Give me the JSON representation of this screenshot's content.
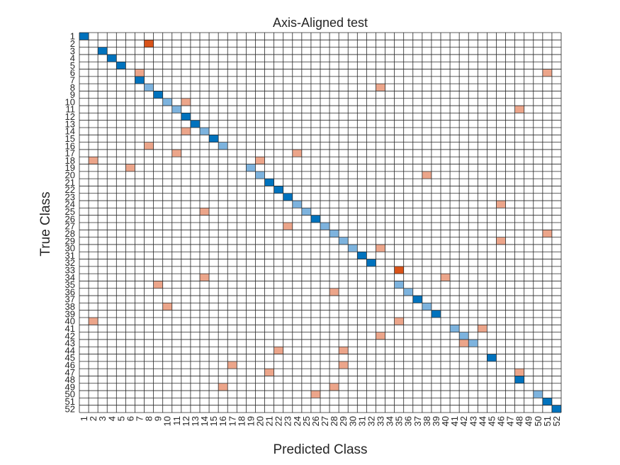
{
  "chart_data": {
    "type": "heatmap",
    "title": "Axis-Aligned test",
    "xlabel": "Predicted Class",
    "ylabel": "True Class",
    "classes": [
      1,
      2,
      3,
      4,
      5,
      6,
      7,
      8,
      9,
      10,
      11,
      12,
      13,
      14,
      15,
      16,
      17,
      18,
      19,
      20,
      21,
      22,
      23,
      24,
      25,
      26,
      27,
      28,
      29,
      30,
      31,
      32,
      33,
      34,
      35,
      36,
      37,
      38,
      39,
      40,
      41,
      42,
      43,
      44,
      45,
      46,
      47,
      48,
      49,
      50,
      51,
      52
    ],
    "grid": true,
    "colors": {
      "correct_full": "#0072BD",
      "correct_partial": "#7DB3DE",
      "error_strong": "#D95319",
      "error_weak": "#ECA58A",
      "grid_line": "#262626",
      "background": "#ffffff"
    },
    "cells": [
      {
        "true": 1,
        "pred": 1,
        "kind": "correct_full"
      },
      {
        "true": 2,
        "pred": 8,
        "kind": "error_strong"
      },
      {
        "true": 3,
        "pred": 3,
        "kind": "correct_full"
      },
      {
        "true": 4,
        "pred": 4,
        "kind": "correct_full"
      },
      {
        "true": 5,
        "pred": 5,
        "kind": "correct_full"
      },
      {
        "true": 6,
        "pred": 7,
        "kind": "error_weak"
      },
      {
        "true": 6,
        "pred": 51,
        "kind": "error_weak"
      },
      {
        "true": 7,
        "pred": 7,
        "kind": "correct_full"
      },
      {
        "true": 8,
        "pred": 8,
        "kind": "correct_partial"
      },
      {
        "true": 8,
        "pred": 33,
        "kind": "error_weak"
      },
      {
        "true": 9,
        "pred": 9,
        "kind": "correct_full"
      },
      {
        "true": 10,
        "pred": 10,
        "kind": "correct_partial"
      },
      {
        "true": 10,
        "pred": 12,
        "kind": "error_weak"
      },
      {
        "true": 11,
        "pred": 11,
        "kind": "correct_partial"
      },
      {
        "true": 11,
        "pred": 48,
        "kind": "error_weak"
      },
      {
        "true": 12,
        "pred": 12,
        "kind": "correct_full"
      },
      {
        "true": 13,
        "pred": 13,
        "kind": "correct_full"
      },
      {
        "true": 14,
        "pred": 12,
        "kind": "error_weak"
      },
      {
        "true": 14,
        "pred": 14,
        "kind": "correct_partial"
      },
      {
        "true": 15,
        "pred": 15,
        "kind": "correct_full"
      },
      {
        "true": 16,
        "pred": 8,
        "kind": "error_weak"
      },
      {
        "true": 16,
        "pred": 16,
        "kind": "correct_partial"
      },
      {
        "true": 17,
        "pred": 11,
        "kind": "error_weak"
      },
      {
        "true": 17,
        "pred": 24,
        "kind": "error_weak"
      },
      {
        "true": 18,
        "pred": 2,
        "kind": "error_weak"
      },
      {
        "true": 18,
        "pred": 20,
        "kind": "error_weak"
      },
      {
        "true": 19,
        "pred": 6,
        "kind": "error_weak"
      },
      {
        "true": 19,
        "pred": 19,
        "kind": "correct_partial"
      },
      {
        "true": 20,
        "pred": 20,
        "kind": "correct_partial"
      },
      {
        "true": 20,
        "pred": 38,
        "kind": "error_weak"
      },
      {
        "true": 21,
        "pred": 21,
        "kind": "correct_full"
      },
      {
        "true": 22,
        "pred": 22,
        "kind": "correct_full"
      },
      {
        "true": 23,
        "pred": 23,
        "kind": "correct_full"
      },
      {
        "true": 24,
        "pred": 24,
        "kind": "correct_partial"
      },
      {
        "true": 24,
        "pred": 46,
        "kind": "error_weak"
      },
      {
        "true": 25,
        "pred": 14,
        "kind": "error_weak"
      },
      {
        "true": 25,
        "pred": 25,
        "kind": "correct_partial"
      },
      {
        "true": 26,
        "pred": 26,
        "kind": "correct_full"
      },
      {
        "true": 27,
        "pred": 23,
        "kind": "error_weak"
      },
      {
        "true": 27,
        "pred": 27,
        "kind": "correct_partial"
      },
      {
        "true": 28,
        "pred": 28,
        "kind": "correct_partial"
      },
      {
        "true": 28,
        "pred": 51,
        "kind": "error_weak"
      },
      {
        "true": 29,
        "pred": 29,
        "kind": "correct_partial"
      },
      {
        "true": 29,
        "pred": 46,
        "kind": "error_weak"
      },
      {
        "true": 30,
        "pred": 30,
        "kind": "correct_partial"
      },
      {
        "true": 30,
        "pred": 33,
        "kind": "error_weak"
      },
      {
        "true": 31,
        "pred": 31,
        "kind": "correct_full"
      },
      {
        "true": 32,
        "pred": 32,
        "kind": "correct_full"
      },
      {
        "true": 33,
        "pred": 35,
        "kind": "error_strong"
      },
      {
        "true": 34,
        "pred": 14,
        "kind": "error_weak"
      },
      {
        "true": 34,
        "pred": 40,
        "kind": "error_weak"
      },
      {
        "true": 35,
        "pred": 9,
        "kind": "error_weak"
      },
      {
        "true": 35,
        "pred": 35,
        "kind": "correct_partial"
      },
      {
        "true": 36,
        "pred": 28,
        "kind": "error_weak"
      },
      {
        "true": 36,
        "pred": 36,
        "kind": "correct_partial"
      },
      {
        "true": 37,
        "pred": 37,
        "kind": "correct_full"
      },
      {
        "true": 38,
        "pred": 10,
        "kind": "error_weak"
      },
      {
        "true": 38,
        "pred": 38,
        "kind": "correct_partial"
      },
      {
        "true": 39,
        "pred": 39,
        "kind": "correct_full"
      },
      {
        "true": 40,
        "pred": 2,
        "kind": "error_weak"
      },
      {
        "true": 40,
        "pred": 35,
        "kind": "error_weak"
      },
      {
        "true": 41,
        "pred": 41,
        "kind": "correct_partial"
      },
      {
        "true": 41,
        "pred": 44,
        "kind": "error_weak"
      },
      {
        "true": 42,
        "pred": 33,
        "kind": "error_weak"
      },
      {
        "true": 42,
        "pred": 42,
        "kind": "correct_partial"
      },
      {
        "true": 43,
        "pred": 42,
        "kind": "error_weak"
      },
      {
        "true": 43,
        "pred": 43,
        "kind": "correct_partial"
      },
      {
        "true": 44,
        "pred": 22,
        "kind": "error_weak"
      },
      {
        "true": 44,
        "pred": 29,
        "kind": "error_weak"
      },
      {
        "true": 45,
        "pred": 45,
        "kind": "correct_full"
      },
      {
        "true": 46,
        "pred": 17,
        "kind": "error_weak"
      },
      {
        "true": 46,
        "pred": 29,
        "kind": "error_weak"
      },
      {
        "true": 47,
        "pred": 21,
        "kind": "error_weak"
      },
      {
        "true": 47,
        "pred": 48,
        "kind": "error_weak"
      },
      {
        "true": 48,
        "pred": 48,
        "kind": "correct_full"
      },
      {
        "true": 49,
        "pred": 16,
        "kind": "error_weak"
      },
      {
        "true": 49,
        "pred": 28,
        "kind": "error_weak"
      },
      {
        "true": 50,
        "pred": 26,
        "kind": "error_weak"
      },
      {
        "true": 50,
        "pred": 50,
        "kind": "correct_partial"
      },
      {
        "true": 51,
        "pred": 51,
        "kind": "correct_full"
      },
      {
        "true": 52,
        "pred": 52,
        "kind": "correct_full"
      }
    ]
  }
}
